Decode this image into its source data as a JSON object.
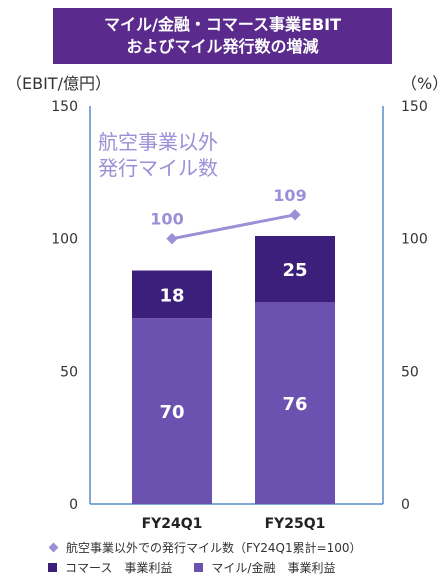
{
  "title": {
    "line1": "マイル/金融・コマース事業EBIT",
    "line2": "およびマイル発行数の増減"
  },
  "left_unit": "（EBIT/億円）",
  "right_unit": "（%）",
  "colors": {
    "banner": "#5a2a8c",
    "commerce": "#3b1f7a",
    "mile_finance": "#6b52b0",
    "line": "#9b8fd6",
    "axis_line": "#5b8cc8"
  },
  "chart_data": {
    "type": "bar",
    "stacked": true,
    "categories": [
      "FY24Q1",
      "FY25Q1"
    ],
    "series": [
      {
        "name": "マイル/金融　事業利益",
        "values": [
          70,
          76
        ]
      },
      {
        "name": "コマース　事業利益",
        "values": [
          18,
          25
        ]
      }
    ],
    "line_series": {
      "name": "航空事業以外での発行マイル数（FY24Q1累計=100）",
      "label": "航空事業以外\n発行マイル数",
      "values": [
        100,
        109
      ],
      "axis": "right"
    },
    "y_left": {
      "min": 0,
      "max": 150,
      "ticks": [
        0,
        50,
        100,
        150
      ]
    },
    "y_right": {
      "min": 0,
      "max": 150,
      "ticks": [
        0,
        50,
        100,
        150
      ]
    },
    "legend_position": "bottom"
  },
  "legend": {
    "line": "航空事業以外での発行マイル数（FY24Q1累計=100）",
    "commerce": "コマース　事業利益",
    "mile_finance": "マイル/金融　事業利益"
  }
}
